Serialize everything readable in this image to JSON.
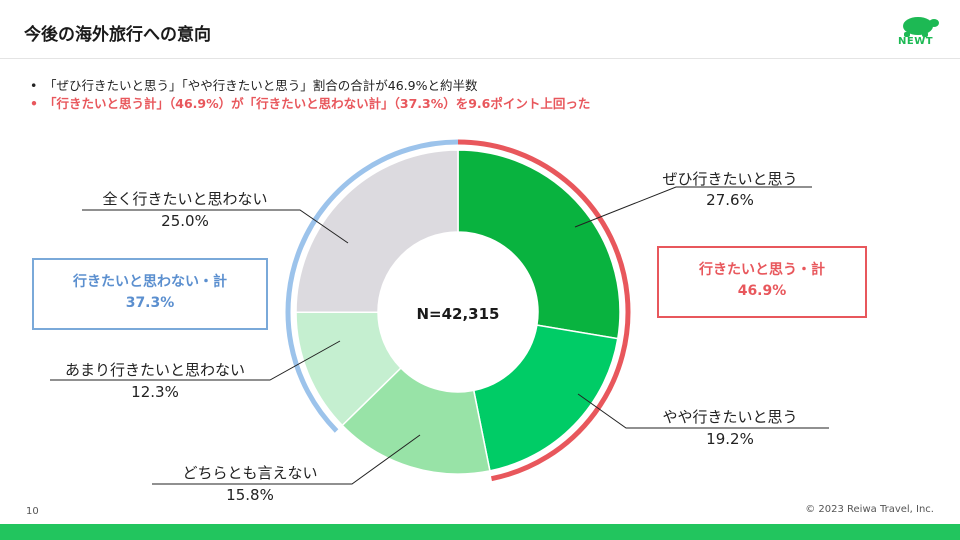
{
  "slide": {
    "title": "今後の海外旅行への意向",
    "page_number": "10",
    "copyright": "© 2023 Reiwa Travel, Inc.",
    "logo_text": "NEWT",
    "brand_color": "#22c55e"
  },
  "bullets": [
    "「ぜひ行きたいと思う」「やや行きたいと思う」割合の合計が46.9%と約半数",
    "「行きたいと思う計」（46.9%）が「行きたいと思わない計」（37.3%）を9.6ポイント上回った"
  ],
  "summary_boxes": {
    "negative": {
      "label": "行きたいと思わない・計",
      "value": "37.3%",
      "color": "#5b8fcf"
    },
    "positive": {
      "label": "行きたいと思う・計",
      "value": "46.9%",
      "color": "#e8575c"
    }
  },
  "chart_data": {
    "type": "pie",
    "donut": true,
    "center_label": "N=42,315",
    "categories": [
      "ぜひ行きたいと思う",
      "やや行きたいと思う",
      "どちらとも言えない",
      "あまり行きたいと思わない",
      "全く行きたいと思わない"
    ],
    "values": [
      27.6,
      19.2,
      15.8,
      12.3,
      25.0
    ],
    "value_labels": [
      "27.6%",
      "19.2%",
      "15.8%",
      "12.3%",
      "25.0%"
    ],
    "colors": [
      "#09b33f",
      "#00cc66",
      "#98e3a7",
      "#c5efd0",
      "#dcdadf"
    ],
    "groups": [
      {
        "name": "行きたいと思う・計",
        "value": 46.9,
        "members": [
          0,
          1
        ],
        "color": "#e8575c"
      },
      {
        "name": "行きたいと思わない・計",
        "value": 37.3,
        "members": [
          3,
          4
        ],
        "color": "#9cc3eb"
      }
    ]
  }
}
